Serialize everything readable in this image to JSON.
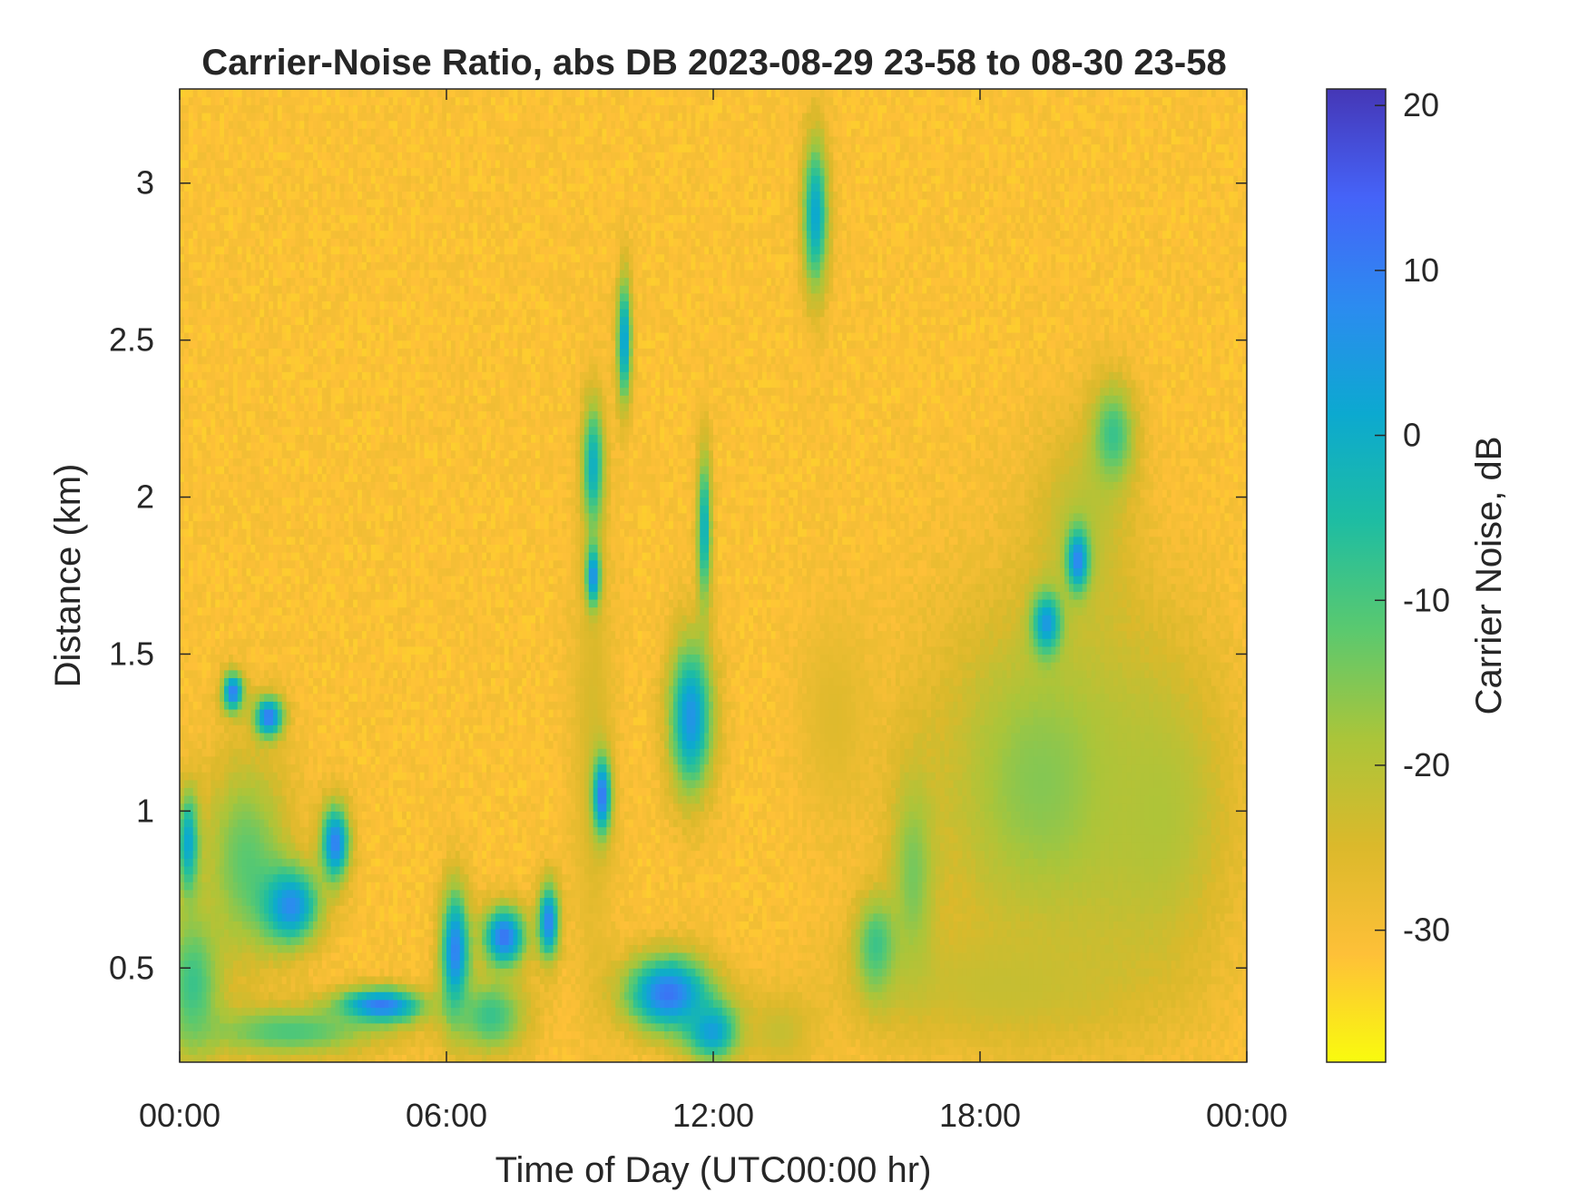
{
  "chart_data": {
    "type": "heatmap",
    "title": "Carrier-Noise Ratio, abs DB 2023-08-29 23-58 to 08-30 23-58",
    "xlabel": "Time of Day (UTC00:00 hr)",
    "ylabel": "Distance (km)",
    "colorbar_label": "Carrier Noise, dB",
    "xlim": [
      0,
      24
    ],
    "ylim": [
      0.2,
      3.3
    ],
    "clim": [
      -38,
      21
    ],
    "x_ticks": [
      0,
      6,
      12,
      18,
      24
    ],
    "x_tick_labels": [
      "00:00",
      "06:00",
      "12:00",
      "18:00",
      "00:00"
    ],
    "y_ticks": [
      0.5,
      1,
      1.5,
      2,
      2.5,
      3
    ],
    "y_tick_labels": [
      "0.5",
      "1",
      "1.5",
      "2",
      "2.5",
      "3"
    ],
    "colorbar_ticks": [
      20,
      10,
      0,
      -10,
      -20,
      -30
    ],
    "colorbar_tick_labels": [
      "20",
      "10",
      "0",
      "-10",
      "-20",
      "-30"
    ],
    "colormap": [
      "#f9fb0e",
      "#fec038",
      "#dbb92b",
      "#aac53a",
      "#5ac96f",
      "#1ebda2",
      "#0ca9d0",
      "#2c8bf0",
      "#4563f8",
      "#4537b6"
    ],
    "grid": false,
    "background_level": -31,
    "features": [
      {
        "kind": "blob",
        "t": 0.3,
        "d": 0.45,
        "wt": 0.8,
        "wd": 0.3,
        "v": -8
      },
      {
        "kind": "blob",
        "t": 0.2,
        "d": 0.9,
        "wt": 0.3,
        "wd": 0.2,
        "v": 5
      },
      {
        "kind": "blob",
        "t": 1.2,
        "d": 1.38,
        "wt": 0.3,
        "wd": 0.08,
        "v": 12
      },
      {
        "kind": "blob",
        "t": 2.0,
        "d": 1.3,
        "wt": 0.4,
        "wd": 0.08,
        "v": 14
      },
      {
        "kind": "blob",
        "t": 1.5,
        "d": 0.85,
        "wt": 1.2,
        "wd": 0.4,
        "v": -12
      },
      {
        "kind": "blob",
        "t": 2.5,
        "d": 0.7,
        "wt": 0.8,
        "wd": 0.15,
        "v": 8
      },
      {
        "kind": "blob",
        "t": 3.5,
        "d": 0.9,
        "wt": 0.4,
        "wd": 0.15,
        "v": 10
      },
      {
        "kind": "blob",
        "t": 4.5,
        "d": 0.38,
        "wt": 1.2,
        "wd": 0.07,
        "v": 14
      },
      {
        "kind": "blob",
        "t": 2.5,
        "d": 0.3,
        "wt": 2.5,
        "wd": 0.1,
        "v": -10
      },
      {
        "kind": "blob",
        "t": 6.2,
        "d": 0.55,
        "wt": 0.4,
        "wd": 0.25,
        "v": 10
      },
      {
        "kind": "blob",
        "t": 7.3,
        "d": 0.6,
        "wt": 0.6,
        "wd": 0.12,
        "v": 12
      },
      {
        "kind": "blob",
        "t": 7.0,
        "d": 0.35,
        "wt": 1.0,
        "wd": 0.15,
        "v": -8
      },
      {
        "kind": "blob",
        "t": 8.3,
        "d": 0.65,
        "wt": 0.3,
        "wd": 0.15,
        "v": 10
      },
      {
        "kind": "blob",
        "t": 9.3,
        "d": 1.2,
        "wt": 0.6,
        "wd": 0.9,
        "v": -24
      },
      {
        "kind": "blob",
        "t": 9.5,
        "d": 1.05,
        "wt": 0.25,
        "wd": 0.15,
        "v": 12
      },
      {
        "kind": "blob",
        "t": 9.3,
        "d": 2.1,
        "wt": 0.3,
        "wd": 0.25,
        "v": 0
      },
      {
        "kind": "blob",
        "t": 9.3,
        "d": 1.75,
        "wt": 0.2,
        "wd": 0.12,
        "v": 8
      },
      {
        "kind": "blob",
        "t": 10.0,
        "d": 2.5,
        "wt": 0.2,
        "wd": 0.25,
        "v": 4
      },
      {
        "kind": "blob",
        "t": 11.0,
        "d": 0.42,
        "wt": 1.2,
        "wd": 0.15,
        "v": 12
      },
      {
        "kind": "blob",
        "t": 12.0,
        "d": 0.3,
        "wt": 0.8,
        "wd": 0.12,
        "v": 5
      },
      {
        "kind": "blob",
        "t": 11.8,
        "d": 1.9,
        "wt": 0.2,
        "wd": 0.3,
        "v": 0
      },
      {
        "kind": "blob",
        "t": 11.5,
        "d": 1.3,
        "wt": 0.6,
        "wd": 0.3,
        "v": 6
      },
      {
        "kind": "blob",
        "t": 14.3,
        "d": 2.9,
        "wt": 0.35,
        "wd": 0.3,
        "v": 2
      },
      {
        "kind": "blob",
        "t": 14.7,
        "d": 1.3,
        "wt": 1.0,
        "wd": 0.4,
        "v": -26
      },
      {
        "kind": "blob",
        "t": 15.7,
        "d": 0.55,
        "wt": 0.6,
        "wd": 0.2,
        "v": 0
      },
      {
        "kind": "blob",
        "t": 19.5,
        "d": 1.1,
        "wt": 3.2,
        "wd": 0.7,
        "v": -15
      },
      {
        "kind": "blob",
        "t": 20.3,
        "d": 1.9,
        "wt": 1.3,
        "wd": 0.4,
        "v": -20
      },
      {
        "kind": "blob",
        "t": 18.5,
        "d": 0.45,
        "wt": 4.0,
        "wd": 0.25,
        "v": -22
      },
      {
        "kind": "blob",
        "t": 21.0,
        "d": 2.2,
        "wt": 0.6,
        "wd": 0.2,
        "v": -8
      },
      {
        "kind": "blob",
        "t": 19.5,
        "d": 1.6,
        "wt": 0.4,
        "wd": 0.12,
        "v": 6
      },
      {
        "kind": "blob",
        "t": 20.2,
        "d": 1.8,
        "wt": 0.3,
        "wd": 0.12,
        "v": 10
      },
      {
        "kind": "blob",
        "t": 22.0,
        "d": 1.0,
        "wt": 2.0,
        "wd": 0.6,
        "v": -19
      },
      {
        "kind": "blob",
        "t": 16.5,
        "d": 0.8,
        "wt": 0.6,
        "wd": 0.4,
        "v": -14
      },
      {
        "kind": "blob",
        "t": 13.5,
        "d": 0.3,
        "wt": 1.0,
        "wd": 0.15,
        "v": -22
      }
    ]
  }
}
